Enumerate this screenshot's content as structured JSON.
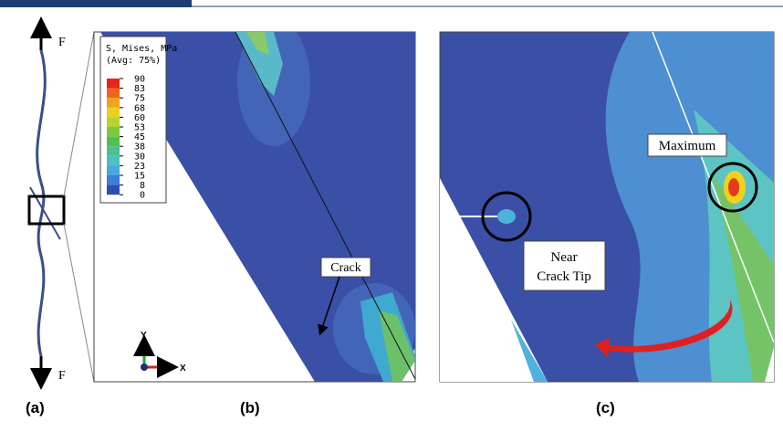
{
  "panels": {
    "a": {
      "label": "(a)",
      "force_top": "F",
      "force_bottom": "F"
    },
    "b": {
      "label": "(b)",
      "legend": {
        "title": "S, Mises, MPa",
        "subtitle": "(Avg: 75%)",
        "values": [
          90,
          83,
          75,
          68,
          60,
          53,
          45,
          38,
          30,
          23,
          15,
          8,
          0
        ]
      },
      "crack_label": "Crack",
      "axis_y": "Y",
      "axis_x": "X"
    },
    "c": {
      "label": "(c)",
      "maximum_label": "Maximum",
      "near_crack_tip_lines": [
        "Near",
        "Crack Tip"
      ]
    }
  }
}
